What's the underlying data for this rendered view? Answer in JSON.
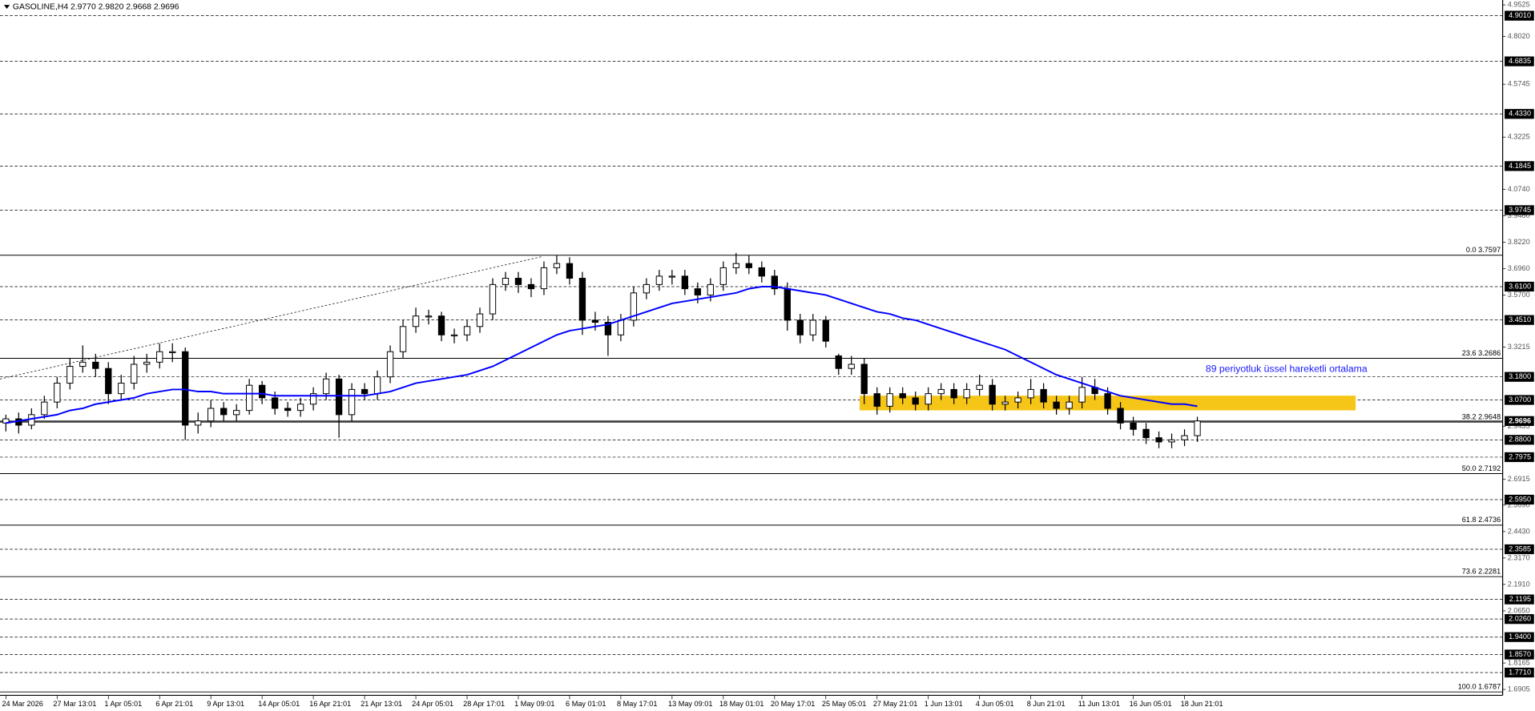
{
  "chart_data": {
    "type": "candlestick",
    "title": "GASOLINE,H4  2.9770 2.9820 2.9668 2.9696",
    "annotation": "89 periyotluk üssel hareketli ortalama",
    "ylim": [
      1.6905,
      4.9525
    ],
    "yticks": [
      4.9525,
      {
        "value": 4.802,
        "label": "4.8020"
      },
      4.5745,
      4.3225,
      {
        "value": 4.074,
        "label": "4.0740"
      },
      {
        "value": 3.948,
        "label": "3.9480"
      },
      {
        "value": 3.822,
        "label": "3.8220"
      },
      {
        "value": 3.696,
        "label": "3.6960"
      },
      {
        "value": 3.57,
        "label": "3.5700"
      },
      3.3215,
      2.9435,
      2.6915,
      {
        "value": 2.569,
        "label": "2.5690"
      },
      {
        "value": 2.443,
        "label": "2.4430"
      },
      {
        "value": 2.317,
        "label": "2.3170"
      },
      {
        "value": 2.191,
        "label": "2.1910"
      },
      {
        "value": 2.065,
        "label": "2.0650"
      },
      1.8165,
      1.6905
    ],
    "levels": [
      {
        "value": 4.901,
        "label": "4.9010"
      },
      4.6835,
      {
        "value": 4.433,
        "label": "4.4330"
      },
      4.1845,
      3.9745,
      {
        "value": 3.61,
        "label": "3.6100"
      },
      {
        "value": 3.451,
        "label": "3.4510"
      },
      {
        "value": 3.18,
        "label": "3.1800"
      },
      {
        "value": 3.07,
        "label": "3.0700"
      },
      {
        "value": 2.88,
        "label": "2.8800"
      },
      2.7975,
      {
        "value": 2.595,
        "label": "2.5950"
      },
      2.3585,
      2.1195,
      {
        "value": 2.026,
        "label": "2.0260"
      },
      {
        "value": 1.94,
        "label": "1.9400"
      },
      {
        "value": 1.857,
        "label": "1.8570"
      },
      {
        "value": 1.771,
        "label": "1.7710"
      }
    ],
    "last_price": 2.9696,
    "fib": [
      {
        "value": 3.7597,
        "label": "0.0 3.7597"
      },
      {
        "value": 3.2686,
        "label": "23.6 3.2686"
      },
      {
        "value": 2.9648,
        "label": "38.2 2.9648"
      },
      {
        "value": 2.7192,
        "label": "50.0 2.7192"
      },
      {
        "value": 2.4736,
        "label": "61.8 2.4736"
      },
      {
        "value": 2.2281,
        "label": "73.6 2.2281"
      },
      {
        "value": 1.6787,
        "label": "100.0 1.6787"
      }
    ],
    "categories": [
      "24 Mar 2026",
      null,
      null,
      null,
      "27 Mar 13:01",
      null,
      null,
      null,
      "1 Apr 05:01",
      null,
      null,
      null,
      "6 Apr 21:01",
      null,
      null,
      null,
      "9 Apr 13:01",
      null,
      null,
      null,
      "14 Apr 05:01",
      null,
      null,
      null,
      "16 Apr 21:01",
      null,
      null,
      null,
      "21 Apr 13:01",
      null,
      null,
      null,
      "24 Apr 05:01",
      null,
      null,
      null,
      "28 Apr 17:01",
      null,
      null,
      null,
      "1 May 09:01",
      null,
      null,
      null,
      "6 May 01:01",
      null,
      null,
      null,
      "8 May 17:01",
      null,
      null,
      null,
      "13 May 09:01",
      null,
      null,
      null,
      "18 May 01:01",
      null,
      null,
      null,
      "20 May 17:01",
      null,
      null,
      null,
      "25 May 05:01",
      null,
      null,
      null,
      "27 May 21:01",
      null,
      null,
      null,
      "1 Jun 13:01",
      null,
      null,
      null,
      "4 Jun 05:01",
      null,
      null,
      null,
      "8 Jun 21:01",
      null,
      null,
      null,
      "11 Jun 13:01",
      null,
      null,
      null,
      "16 Jun 05:01",
      null,
      null,
      null,
      "18 Jun 21:01",
      null
    ],
    "ohlc": [
      [
        2.96,
        3.0,
        2.92,
        2.98
      ],
      [
        2.98,
        3.01,
        2.91,
        2.95
      ],
      [
        2.95,
        3.03,
        2.93,
        3.0
      ],
      [
        3.0,
        3.09,
        2.98,
        3.06
      ],
      [
        3.06,
        3.18,
        3.03,
        3.15
      ],
      [
        3.15,
        3.27,
        3.12,
        3.23
      ],
      [
        3.23,
        3.33,
        3.2,
        3.25
      ],
      [
        3.25,
        3.29,
        3.18,
        3.22
      ],
      [
        3.22,
        3.25,
        3.05,
        3.1
      ],
      [
        3.1,
        3.19,
        3.07,
        3.15
      ],
      [
        3.15,
        3.28,
        3.12,
        3.24
      ],
      [
        3.24,
        3.29,
        3.2,
        3.25
      ],
      [
        3.25,
        3.34,
        3.22,
        3.3
      ],
      [
        3.3,
        3.34,
        3.25,
        3.3
      ],
      [
        3.3,
        3.32,
        2.88,
        2.95
      ],
      [
        2.95,
        3.01,
        2.91,
        2.97
      ],
      [
        2.97,
        3.07,
        2.94,
        3.03
      ],
      [
        3.03,
        3.06,
        2.97,
        3.0
      ],
      [
        3.0,
        3.05,
        2.97,
        3.02
      ],
      [
        3.02,
        3.17,
        3.0,
        3.14
      ],
      [
        3.14,
        3.16,
        3.05,
        3.08
      ],
      [
        3.08,
        3.11,
        3.0,
        3.03
      ],
      [
        3.03,
        3.06,
        2.99,
        3.02
      ],
      [
        3.02,
        3.08,
        2.99,
        3.05
      ],
      [
        3.05,
        3.13,
        3.02,
        3.1
      ],
      [
        3.1,
        3.2,
        3.07,
        3.17
      ],
      [
        3.17,
        3.19,
        2.89,
        3.0
      ],
      [
        3.0,
        3.15,
        2.97,
        3.12
      ],
      [
        3.12,
        3.15,
        3.07,
        3.1
      ],
      [
        3.1,
        3.21,
        3.07,
        3.18
      ],
      [
        3.18,
        3.33,
        3.15,
        3.3
      ],
      [
        3.3,
        3.45,
        3.27,
        3.42
      ],
      [
        3.42,
        3.51,
        3.39,
        3.47
      ],
      [
        3.47,
        3.5,
        3.43,
        3.47
      ],
      [
        3.47,
        3.49,
        3.35,
        3.38
      ],
      [
        3.38,
        3.41,
        3.34,
        3.38
      ],
      [
        3.38,
        3.45,
        3.35,
        3.42
      ],
      [
        3.42,
        3.51,
        3.39,
        3.48
      ],
      [
        3.48,
        3.65,
        3.45,
        3.62
      ],
      [
        3.62,
        3.68,
        3.59,
        3.65
      ],
      [
        3.65,
        3.68,
        3.58,
        3.62
      ],
      [
        3.62,
        3.65,
        3.56,
        3.6
      ],
      [
        3.6,
        3.73,
        3.57,
        3.7
      ],
      [
        3.7,
        3.76,
        3.67,
        3.72
      ],
      [
        3.72,
        3.75,
        3.62,
        3.65
      ],
      [
        3.65,
        3.68,
        3.38,
        3.45
      ],
      [
        3.45,
        3.49,
        3.4,
        3.44
      ],
      [
        3.44,
        3.47,
        3.28,
        3.38
      ],
      [
        3.38,
        3.48,
        3.35,
        3.45
      ],
      [
        3.45,
        3.61,
        3.42,
        3.58
      ],
      [
        3.58,
        3.65,
        3.55,
        3.62
      ],
      [
        3.62,
        3.69,
        3.59,
        3.66
      ],
      [
        3.66,
        3.69,
        3.62,
        3.66
      ],
      [
        3.66,
        3.69,
        3.57,
        3.6
      ],
      [
        3.6,
        3.63,
        3.53,
        3.57
      ],
      [
        3.57,
        3.65,
        3.54,
        3.62
      ],
      [
        3.62,
        3.73,
        3.59,
        3.7
      ],
      [
        3.7,
        3.77,
        3.67,
        3.72
      ],
      [
        3.72,
        3.76,
        3.67,
        3.7
      ],
      [
        3.7,
        3.73,
        3.63,
        3.66
      ],
      [
        3.66,
        3.69,
        3.57,
        3.6
      ],
      [
        3.6,
        3.63,
        3.4,
        3.45
      ],
      [
        3.45,
        3.48,
        3.34,
        3.38
      ],
      [
        3.38,
        3.48,
        3.35,
        3.45
      ],
      [
        3.45,
        3.47,
        3.32,
        3.35
      ],
      [
        3.28,
        3.29,
        3.19,
        3.22
      ],
      [
        3.22,
        3.28,
        3.19,
        3.24
      ],
      [
        3.24,
        3.27,
        3.05,
        3.1
      ],
      [
        3.1,
        3.13,
        3.0,
        3.04
      ],
      [
        3.04,
        3.13,
        3.01,
        3.1
      ],
      [
        3.1,
        3.13,
        3.05,
        3.08
      ],
      [
        3.08,
        3.11,
        3.02,
        3.05
      ],
      [
        3.05,
        3.13,
        3.02,
        3.1
      ],
      [
        3.1,
        3.15,
        3.07,
        3.12
      ],
      [
        3.12,
        3.15,
        3.05,
        3.08
      ],
      [
        3.08,
        3.15,
        3.05,
        3.12
      ],
      [
        3.12,
        3.19,
        3.09,
        3.14
      ],
      [
        3.14,
        3.17,
        3.02,
        3.05
      ],
      [
        3.05,
        3.09,
        3.02,
        3.06
      ],
      [
        3.06,
        3.11,
        3.03,
        3.08
      ],
      [
        3.08,
        3.17,
        3.05,
        3.12
      ],
      [
        3.12,
        3.15,
        3.03,
        3.06
      ],
      [
        3.06,
        3.09,
        3.0,
        3.03
      ],
      [
        3.03,
        3.09,
        3.0,
        3.06
      ],
      [
        3.06,
        3.18,
        3.03,
        3.13
      ],
      [
        3.13,
        3.17,
        3.07,
        3.1
      ],
      [
        3.1,
        3.13,
        3.0,
        3.03
      ],
      [
        3.03,
        3.06,
        2.93,
        2.96
      ],
      [
        2.96,
        2.99,
        2.9,
        2.93
      ],
      [
        2.93,
        2.96,
        2.86,
        2.89
      ],
      [
        2.89,
        2.92,
        2.84,
        2.87
      ],
      [
        2.87,
        2.91,
        2.84,
        2.88
      ],
      [
        2.88,
        2.93,
        2.85,
        2.9
      ],
      [
        2.9,
        2.99,
        2.87,
        2.97
      ]
    ],
    "ema": {
      "color": "#0000ff",
      "values": [
        2.96,
        2.97,
        2.98,
        2.99,
        3.0,
        3.02,
        3.03,
        3.05,
        3.06,
        3.07,
        3.08,
        3.1,
        3.11,
        3.12,
        3.12,
        3.11,
        3.11,
        3.1,
        3.1,
        3.1,
        3.1,
        3.09,
        3.09,
        3.09,
        3.09,
        3.09,
        3.09,
        3.09,
        3.09,
        3.1,
        3.11,
        3.13,
        3.15,
        3.16,
        3.17,
        3.18,
        3.19,
        3.21,
        3.23,
        3.26,
        3.29,
        3.32,
        3.35,
        3.38,
        3.4,
        3.41,
        3.42,
        3.43,
        3.45,
        3.47,
        3.49,
        3.51,
        3.53,
        3.54,
        3.55,
        3.56,
        3.57,
        3.58,
        3.6,
        3.61,
        3.61,
        3.6,
        3.59,
        3.58,
        3.57,
        3.55,
        3.53,
        3.51,
        3.49,
        3.48,
        3.46,
        3.45,
        3.43,
        3.41,
        3.39,
        3.37,
        3.35,
        3.33,
        3.31,
        3.28,
        3.25,
        3.22,
        3.19,
        3.17,
        3.15,
        3.13,
        3.11,
        3.09,
        3.08,
        3.07,
        3.06,
        3.05,
        3.05,
        3.04
      ]
    }
  }
}
